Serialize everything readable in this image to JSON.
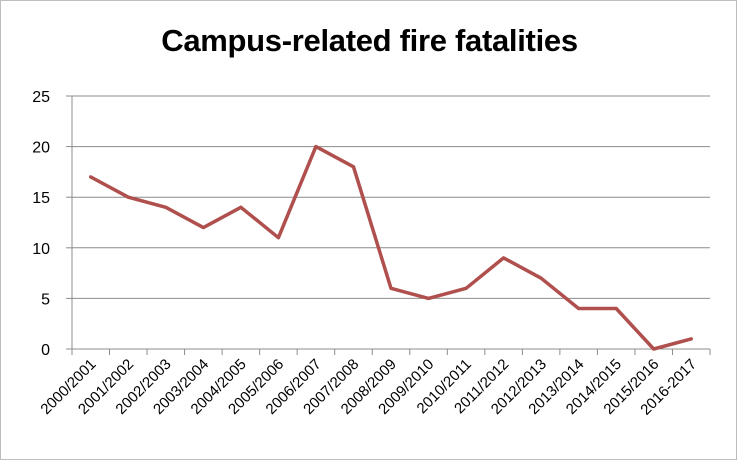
{
  "chart_data": {
    "type": "line",
    "title": "Campus-related fire fatalities",
    "xlabel": "",
    "ylabel": "",
    "categories": [
      "2000/2001",
      "2001/2002",
      "2002/2003",
      "2003/2004",
      "2004/2005",
      "2005/2006",
      "2006/2007",
      "2007/2008",
      "2008/2009",
      "2009/2010",
      "2010/2011",
      "2011/2012",
      "2012/2013",
      "2013/2014",
      "2014/2015",
      "2015/2016",
      "2016-2017"
    ],
    "series": [
      {
        "values": [
          17,
          15,
          14,
          12,
          14,
          11,
          20,
          18,
          6,
          5,
          6,
          9,
          7,
          4,
          4,
          0,
          1
        ],
        "color": "#b0504e"
      }
    ],
    "ylim": [
      0,
      25
    ],
    "yticks": [
      0,
      5,
      10,
      15,
      20,
      25
    ],
    "grid": true,
    "legend": "none"
  }
}
